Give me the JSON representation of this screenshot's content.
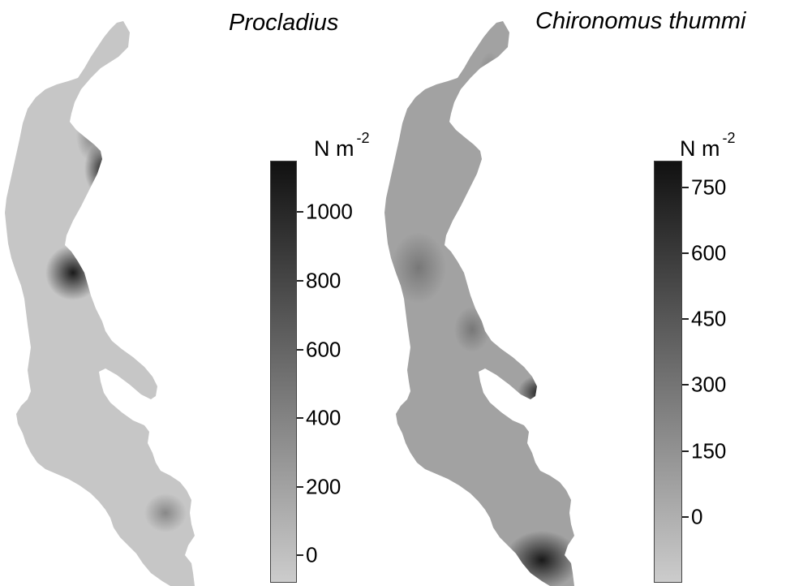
{
  "panels": [
    {
      "taxon": "Procladius",
      "units": "N m",
      "units_exp": "-2",
      "colorbar": {
        "range": [
          -80,
          1150
        ],
        "ticks": [
          0,
          200,
          400,
          600,
          800,
          1000
        ],
        "color_low": "#cccccc",
        "color_high": "#111111"
      }
    },
    {
      "taxon": "Chironomus thummi",
      "units": "N m",
      "units_exp": "-2",
      "colorbar": {
        "range": [
          -150,
          810
        ],
        "ticks": [
          0,
          150,
          300,
          450,
          600,
          750
        ],
        "color_low": "#cccccc",
        "color_high": "#111111"
      }
    }
  ],
  "colors": {
    "lake_fill_left": "#c6c6c6",
    "lake_fill_right": "#a2a2a2",
    "background": "#ffffff"
  }
}
